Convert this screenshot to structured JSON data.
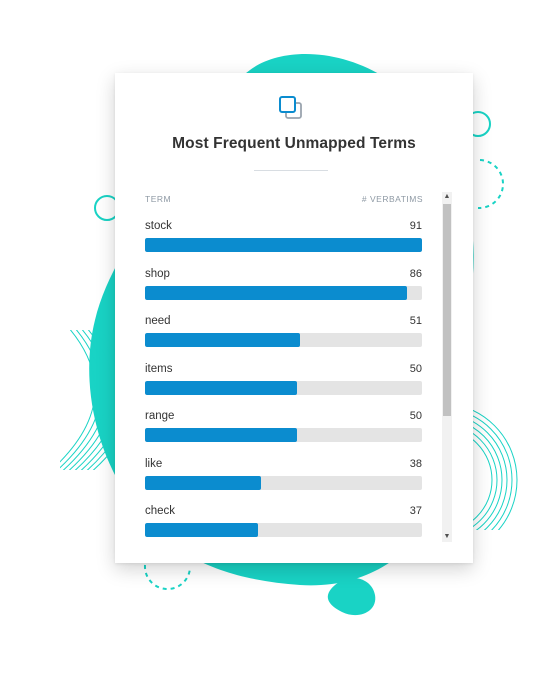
{
  "colors": {
    "accent": "#0b8ccf",
    "track": "#e4e4e4",
    "decor": "#19d3c5"
  },
  "card": {
    "icon": "squares-overlap-icon",
    "title": "Most Frequent Unmapped Terms",
    "columns": {
      "term": "TERM",
      "count": "# VERBATIMS"
    }
  },
  "terms": [
    {
      "term": "stock",
      "count": "91",
      "value": 91
    },
    {
      "term": "shop",
      "count": "86",
      "value": 86
    },
    {
      "term": "need",
      "count": "51",
      "value": 51
    },
    {
      "term": "items",
      "count": "50",
      "value": 50
    },
    {
      "term": "range",
      "count": "50",
      "value": 50
    },
    {
      "term": "like",
      "count": "38",
      "value": 38
    },
    {
      "term": "check",
      "count": "37",
      "value": 37
    }
  ],
  "max_value": 91,
  "scrollbar": {
    "up_icon": "scroll-up-arrow-icon",
    "down_icon": "scroll-down-arrow-icon"
  }
}
